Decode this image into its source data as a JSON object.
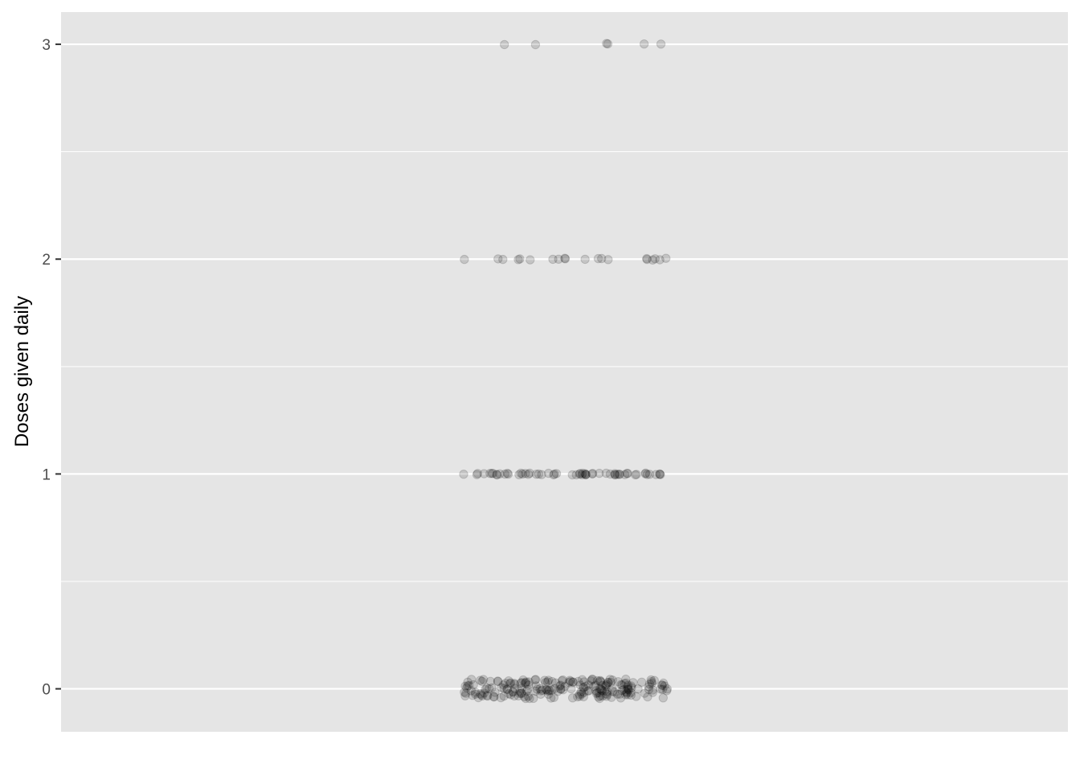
{
  "chart_data": {
    "type": "scatter",
    "title": "",
    "xlabel": "",
    "ylabel": "Doses given daily",
    "ylim": [
      -0.2,
      3.15
    ],
    "y_ticks": [
      0,
      1,
      2,
      3
    ],
    "y_tick_labels": [
      "0",
      "1",
      "2",
      "3"
    ],
    "y_minor_ticks": [
      0.5,
      1.5,
      2.5
    ],
    "x_ticks": [],
    "grid": true,
    "legend": "none",
    "jitter": "horizontal jitter within a single category; small vertical jitter at 0",
    "groups": [
      {
        "y": 0,
        "n_points": 220
      },
      {
        "y": 1,
        "n_points": 60
      },
      {
        "y": 2,
        "n_points": 20
      },
      {
        "y": 3,
        "n_points": 6
      }
    ],
    "colors": {
      "panel": "#e5e5e5",
      "grid_major": "#ffffff",
      "point": "#000000",
      "point_alpha": 0.15
    }
  }
}
